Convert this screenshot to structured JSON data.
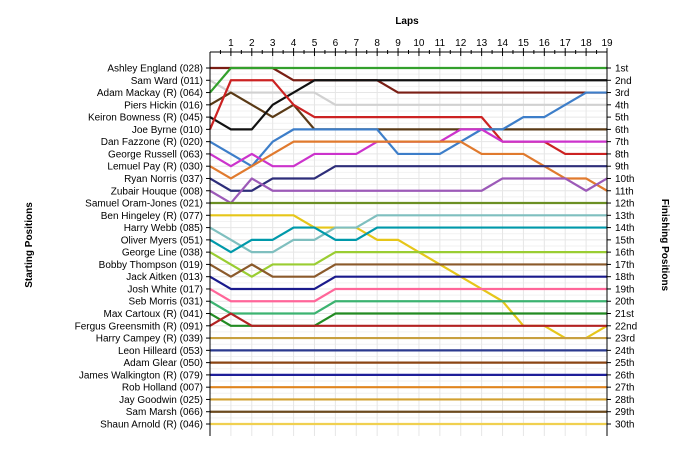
{
  "chart_data": {
    "type": "line",
    "title": "",
    "top_axis_label": "Laps",
    "left_axis_label": "Starting Positions",
    "right_axis_label": "Finishing Positions",
    "laps": [
      1,
      2,
      3,
      4,
      5,
      6,
      7,
      8,
      9,
      10,
      11,
      12,
      13,
      14,
      15,
      16,
      17,
      18,
      19
    ],
    "finishing_labels": [
      "1st",
      "2nd",
      "3rd",
      "4th",
      "5th",
      "6th",
      "7th",
      "8th",
      "9th",
      "10th",
      "11th",
      "12th",
      "13th",
      "14th",
      "15th",
      "16th",
      "17th",
      "18th",
      "19th",
      "20th",
      "21st",
      "22nd",
      "23rd",
      "24th",
      "25th",
      "26th",
      "27th",
      "28th",
      "29th",
      "30th"
    ],
    "y_reversed": true,
    "ylim": [
      1,
      30
    ],
    "grid": true,
    "series": [
      {
        "name": "Ashley England (028)",
        "color": "#7a1e14",
        "positions": [
          1,
          1,
          1,
          1,
          2,
          2,
          2,
          2,
          2,
          3,
          3,
          3,
          3,
          3,
          3,
          3,
          3,
          3,
          3,
          3
        ]
      },
      {
        "name": "Sam Ward (011)",
        "color": "#d1d1d1",
        "positions": [
          2,
          3,
          3,
          3,
          3,
          3,
          4,
          4,
          4,
          4,
          4,
          4,
          4,
          4,
          4,
          4,
          4,
          4,
          4,
          4
        ]
      },
      {
        "name": "Adam Mackay (R) (064)",
        "color": "#33a02c",
        "positions": [
          3,
          1,
          1,
          1,
          1,
          1,
          1,
          1,
          1,
          1,
          1,
          1,
          1,
          1,
          1,
          1,
          1,
          1,
          1,
          1
        ]
      },
      {
        "name": "Piers Hickin (016)",
        "color": "#5a3a16",
        "positions": [
          4,
          3,
          4,
          5,
          4,
          6,
          6,
          6,
          6,
          6,
          6,
          6,
          6,
          6,
          6,
          6,
          6,
          6,
          6,
          6
        ]
      },
      {
        "name": "Keiron Bowness (R) (045)",
        "color": "#111111",
        "positions": [
          5,
          6,
          6,
          4,
          3,
          2,
          2,
          2,
          2,
          2,
          2,
          2,
          2,
          2,
          2,
          2,
          2,
          2,
          2,
          2
        ]
      },
      {
        "name": "Joe Byrne (010)",
        "color": "#cc2222",
        "positions": [
          6,
          2,
          2,
          2,
          4,
          5,
          5,
          5,
          5,
          5,
          5,
          5,
          5,
          5,
          7,
          7,
          7,
          8,
          8,
          8
        ]
      },
      {
        "name": "Dan Fazzone (R) (020)",
        "color": "#3d7ec9",
        "positions": [
          7,
          8,
          9,
          7,
          6,
          6,
          6,
          6,
          6,
          8,
          8,
          8,
          7,
          6,
          6,
          5,
          5,
          4,
          3,
          3
        ]
      },
      {
        "name": "George Russell (063)",
        "color": "#cc33cc",
        "positions": [
          8,
          9,
          8,
          9,
          9,
          8,
          8,
          8,
          7,
          7,
          7,
          7,
          6,
          6,
          7,
          7,
          7,
          7,
          7,
          7
        ]
      },
      {
        "name": "Lemuel Pay (R) (030)",
        "color": "#e07a2e",
        "positions": [
          9,
          10,
          9,
          8,
          7,
          7,
          7,
          7,
          7,
          7,
          7,
          7,
          7,
          8,
          8,
          8,
          9,
          10,
          10,
          11
        ]
      },
      {
        "name": "Ryan Norris (037)",
        "color": "#2e2e7a",
        "positions": [
          10,
          11,
          11,
          10,
          10,
          10,
          9,
          9,
          9,
          9,
          9,
          9,
          9,
          9,
          9,
          9,
          9,
          9,
          9,
          9
        ]
      },
      {
        "name": "Zubair Houque (008)",
        "color": "#9c5ab8",
        "positions": [
          11,
          12,
          10,
          11,
          11,
          11,
          11,
          11,
          11,
          11,
          11,
          11,
          11,
          11,
          10,
          10,
          10,
          10,
          11,
          10
        ]
      },
      {
        "name": "Samuel Oram-Jones (021)",
        "color": "#6b8f23",
        "positions": [
          12,
          12,
          12,
          12,
          12,
          12,
          12,
          12,
          12,
          12,
          12,
          12,
          12,
          12,
          12,
          12,
          12,
          12,
          12,
          12
        ]
      },
      {
        "name": "Ben Hingeley (R) (077)",
        "color": "#e6c619",
        "positions": [
          13,
          13,
          13,
          13,
          13,
          14,
          14,
          14,
          15,
          15,
          16,
          17,
          18,
          19,
          20,
          22,
          22,
          23,
          23,
          22
        ]
      },
      {
        "name": "Harry Webb (085)",
        "color": "#7fbfbf",
        "positions": [
          14,
          15,
          16,
          16,
          15,
          15,
          14,
          14,
          13,
          13,
          13,
          13,
          13,
          13,
          13,
          13,
          13,
          13,
          13,
          13
        ]
      },
      {
        "name": "Oliver Myers (051)",
        "color": "#0099aa",
        "positions": [
          15,
          16,
          15,
          15,
          14,
          14,
          15,
          15,
          14,
          14,
          14,
          14,
          14,
          14,
          14,
          14,
          14,
          14,
          14,
          14
        ]
      },
      {
        "name": "George Line (038)",
        "color": "#9acd32",
        "positions": [
          16,
          17,
          18,
          17,
          17,
          17,
          16,
          16,
          16,
          16,
          16,
          16,
          16,
          16,
          16,
          16,
          16,
          16,
          16,
          16
        ]
      },
      {
        "name": "Bobby Thompson (019)",
        "color": "#8b5a2b",
        "positions": [
          17,
          18,
          17,
          18,
          18,
          18,
          17,
          17,
          17,
          17,
          17,
          17,
          17,
          17,
          17,
          17,
          17,
          17,
          17,
          17
        ]
      },
      {
        "name": "Jack Aitken (013)",
        "color": "#1a1a8c",
        "positions": [
          18,
          19,
          19,
          19,
          19,
          19,
          18,
          18,
          18,
          18,
          18,
          18,
          18,
          18,
          18,
          18,
          18,
          18,
          18,
          18
        ]
      },
      {
        "name": "Josh White (017)",
        "color": "#ff6699",
        "positions": [
          19,
          20,
          20,
          20,
          20,
          20,
          19,
          19,
          19,
          19,
          19,
          19,
          19,
          19,
          19,
          19,
          19,
          19,
          19,
          19
        ]
      },
      {
        "name": "Seb Morris (031)",
        "color": "#3cb371",
        "positions": [
          20,
          21,
          21,
          21,
          21,
          21,
          20,
          20,
          20,
          20,
          20,
          20,
          20,
          20,
          20,
          20,
          20,
          20,
          20,
          20
        ]
      },
      {
        "name": "Max Cartoux (R) (041)",
        "color": "#228b22",
        "positions": [
          21,
          22,
          22,
          22,
          22,
          22,
          21,
          21,
          21,
          21,
          21,
          21,
          21,
          21,
          21,
          21,
          21,
          21,
          21,
          21
        ]
      },
      {
        "name": "Fergus Greensmith (R) (091)",
        "color": "#b22222",
        "positions": [
          22,
          21,
          22,
          22,
          22,
          22,
          22,
          22,
          22,
          22,
          22,
          22,
          22,
          22,
          22,
          22,
          22,
          22,
          22,
          22
        ]
      },
      {
        "name": "Harry Campey (R) (039)",
        "color": "#c8a040",
        "positions": [
          23,
          23,
          23,
          23,
          23,
          23,
          23,
          23,
          23,
          23,
          23,
          23,
          23,
          23,
          23,
          23,
          23,
          23,
          23,
          23
        ]
      },
      {
        "name": "Leon Hilleard (053)",
        "color": "#2b3a8f",
        "positions": [
          24,
          24,
          24,
          24,
          24,
          24,
          24,
          24,
          24,
          24,
          24,
          24,
          24,
          24,
          24,
          24,
          24,
          24,
          24,
          24
        ]
      },
      {
        "name": "Adam Glear (050)",
        "color": "#8b4513",
        "positions": [
          25,
          25,
          25,
          25,
          25,
          25,
          25,
          25,
          25,
          25,
          25,
          25,
          25,
          25,
          25,
          25,
          25,
          25,
          25,
          25
        ]
      },
      {
        "name": "James Walkington (R) (079)",
        "color": "#1f1f99",
        "positions": [
          26,
          26,
          26,
          26,
          26,
          26,
          26,
          26,
          26,
          26,
          26,
          26,
          26,
          26,
          26,
          26,
          26,
          26,
          26,
          26
        ]
      },
      {
        "name": "Rob Holland (007)",
        "color": "#e0851f",
        "positions": [
          27,
          27,
          27,
          27,
          27,
          27,
          27,
          27,
          27,
          27,
          27,
          27,
          27,
          27,
          27,
          27,
          27,
          27,
          27,
          27
        ]
      },
      {
        "name": "Jay Goodwin (025)",
        "color": "#d2a030",
        "positions": [
          28,
          28,
          28,
          28,
          28,
          28,
          28,
          28,
          28,
          28,
          28,
          28,
          28,
          28,
          28,
          28,
          28,
          28,
          28,
          28
        ]
      },
      {
        "name": "Sam Marsh (066)",
        "color": "#6b4a1e",
        "positions": [
          29,
          29,
          29,
          29,
          29,
          29,
          29,
          29,
          29,
          29,
          29,
          29,
          29,
          29,
          29,
          29,
          29,
          29,
          29,
          29
        ]
      },
      {
        "name": "Shaun Arnold (R) (046)",
        "color": "#f0d050",
        "positions": [
          30,
          30,
          30,
          30,
          30,
          30,
          30,
          30,
          30,
          30,
          30,
          30,
          30,
          30,
          30,
          30,
          30,
          30,
          30,
          30
        ]
      }
    ]
  }
}
